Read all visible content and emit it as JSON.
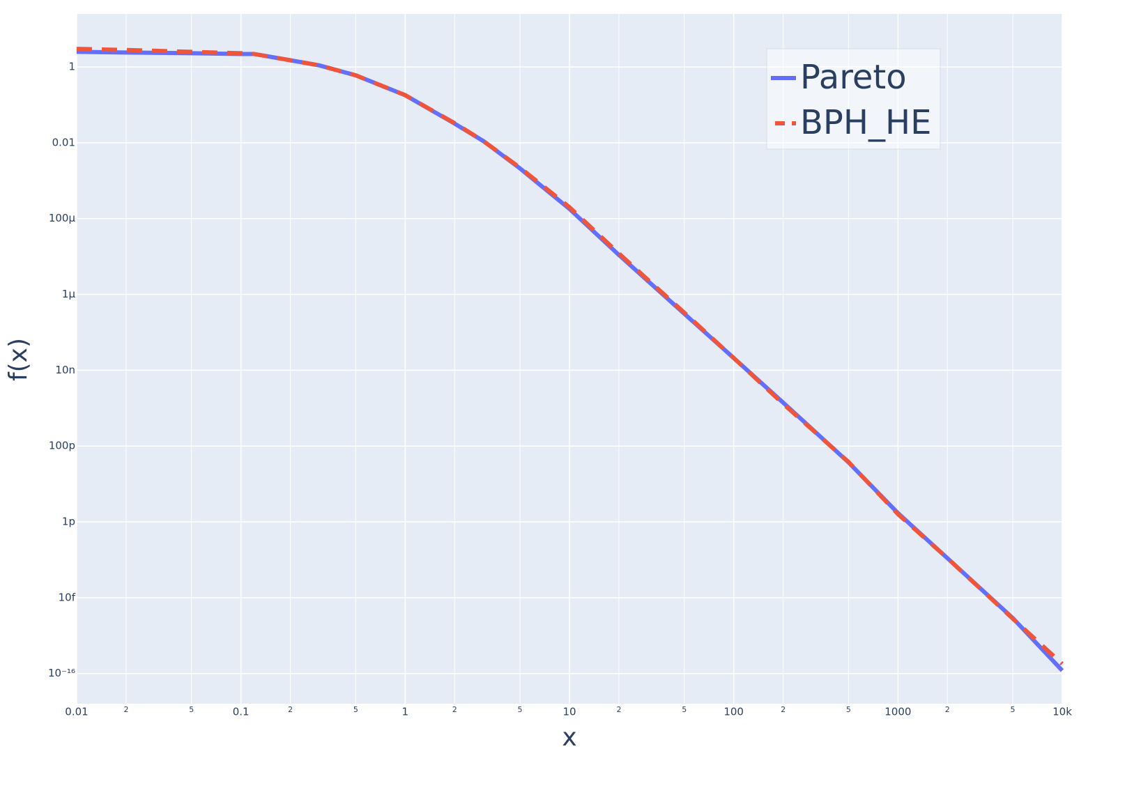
{
  "chart_data": {
    "type": "line",
    "x_label": "x",
    "y_label": "f(x)",
    "x": [
      0.01,
      0.02,
      0.05,
      0.1,
      0.12,
      0.2,
      0.3,
      0.5,
      1,
      2,
      3,
      5,
      10,
      20,
      50,
      100,
      200,
      500,
      1000,
      2000,
      5000,
      10000
    ],
    "series": [
      {
        "name": "Pareto",
        "color": "#636efa",
        "dash": false,
        "values": [
          2.5,
          2.4,
          2.3,
          2.2,
          2.2,
          1.5,
          1.1,
          0.6,
          0.18,
          0.032,
          0.011,
          0.0021,
          0.00018,
          1.1e-05,
          3.1e-07,
          2.1e-08,
          1.4e-09,
          3.7e-11,
          1.7e-12,
          1.1e-13,
          2.9e-15,
          1.2e-16
        ]
      },
      {
        "name": "BPH_HE",
        "color": "#ef553b",
        "dash": true,
        "values": [
          3.0,
          2.8,
          2.5,
          2.3,
          2.2,
          1.5,
          1.1,
          0.6,
          0.18,
          0.033,
          0.011,
          0.0022,
          0.0002,
          1.2e-05,
          3.3e-07,
          2.1e-08,
          1.3e-09,
          3.8e-11,
          1.6e-12,
          1.1e-13,
          2.8e-15,
          1.8e-16
        ]
      }
    ],
    "xlog": true,
    "ylog": true,
    "xlim": [
      0.01,
      10000
    ],
    "ylim": [
      1.6e-17,
      25
    ],
    "xticks": [
      0.01,
      {
        "value": 0.02,
        "label": "2"
      },
      {
        "value": 0.05,
        "label": "5"
      },
      0.1,
      {
        "value": 0.2,
        "label": "2"
      },
      {
        "value": 0.5,
        "label": "5"
      },
      1,
      {
        "value": 2,
        "label": "2"
      },
      {
        "value": 5,
        "label": "5"
      },
      10,
      {
        "value": 20,
        "label": "2"
      },
      {
        "value": 50,
        "label": "5"
      },
      100,
      {
        "value": 200,
        "label": "2"
      },
      {
        "value": 500,
        "label": "5"
      },
      1000,
      {
        "value": 2000,
        "label": "2"
      },
      {
        "value": 5000,
        "label": "5"
      },
      {
        "value": 10000,
        "label": "10k"
      }
    ],
    "yticks": [
      1,
      0.01,
      {
        "value": 0.0001,
        "label": "100µ"
      },
      {
        "value": 1e-06,
        "label": "1µ"
      },
      {
        "value": 1e-08,
        "label": "10n"
      },
      {
        "value": 1e-10,
        "label": "100p"
      },
      {
        "value": 1e-12,
        "label": "1p"
      },
      {
        "value": 1e-14,
        "label": "10f"
      },
      {
        "value": 1e-16,
        "label": "10⁻¹⁶"
      }
    ],
    "grid": true,
    "legend": "upper right"
  }
}
